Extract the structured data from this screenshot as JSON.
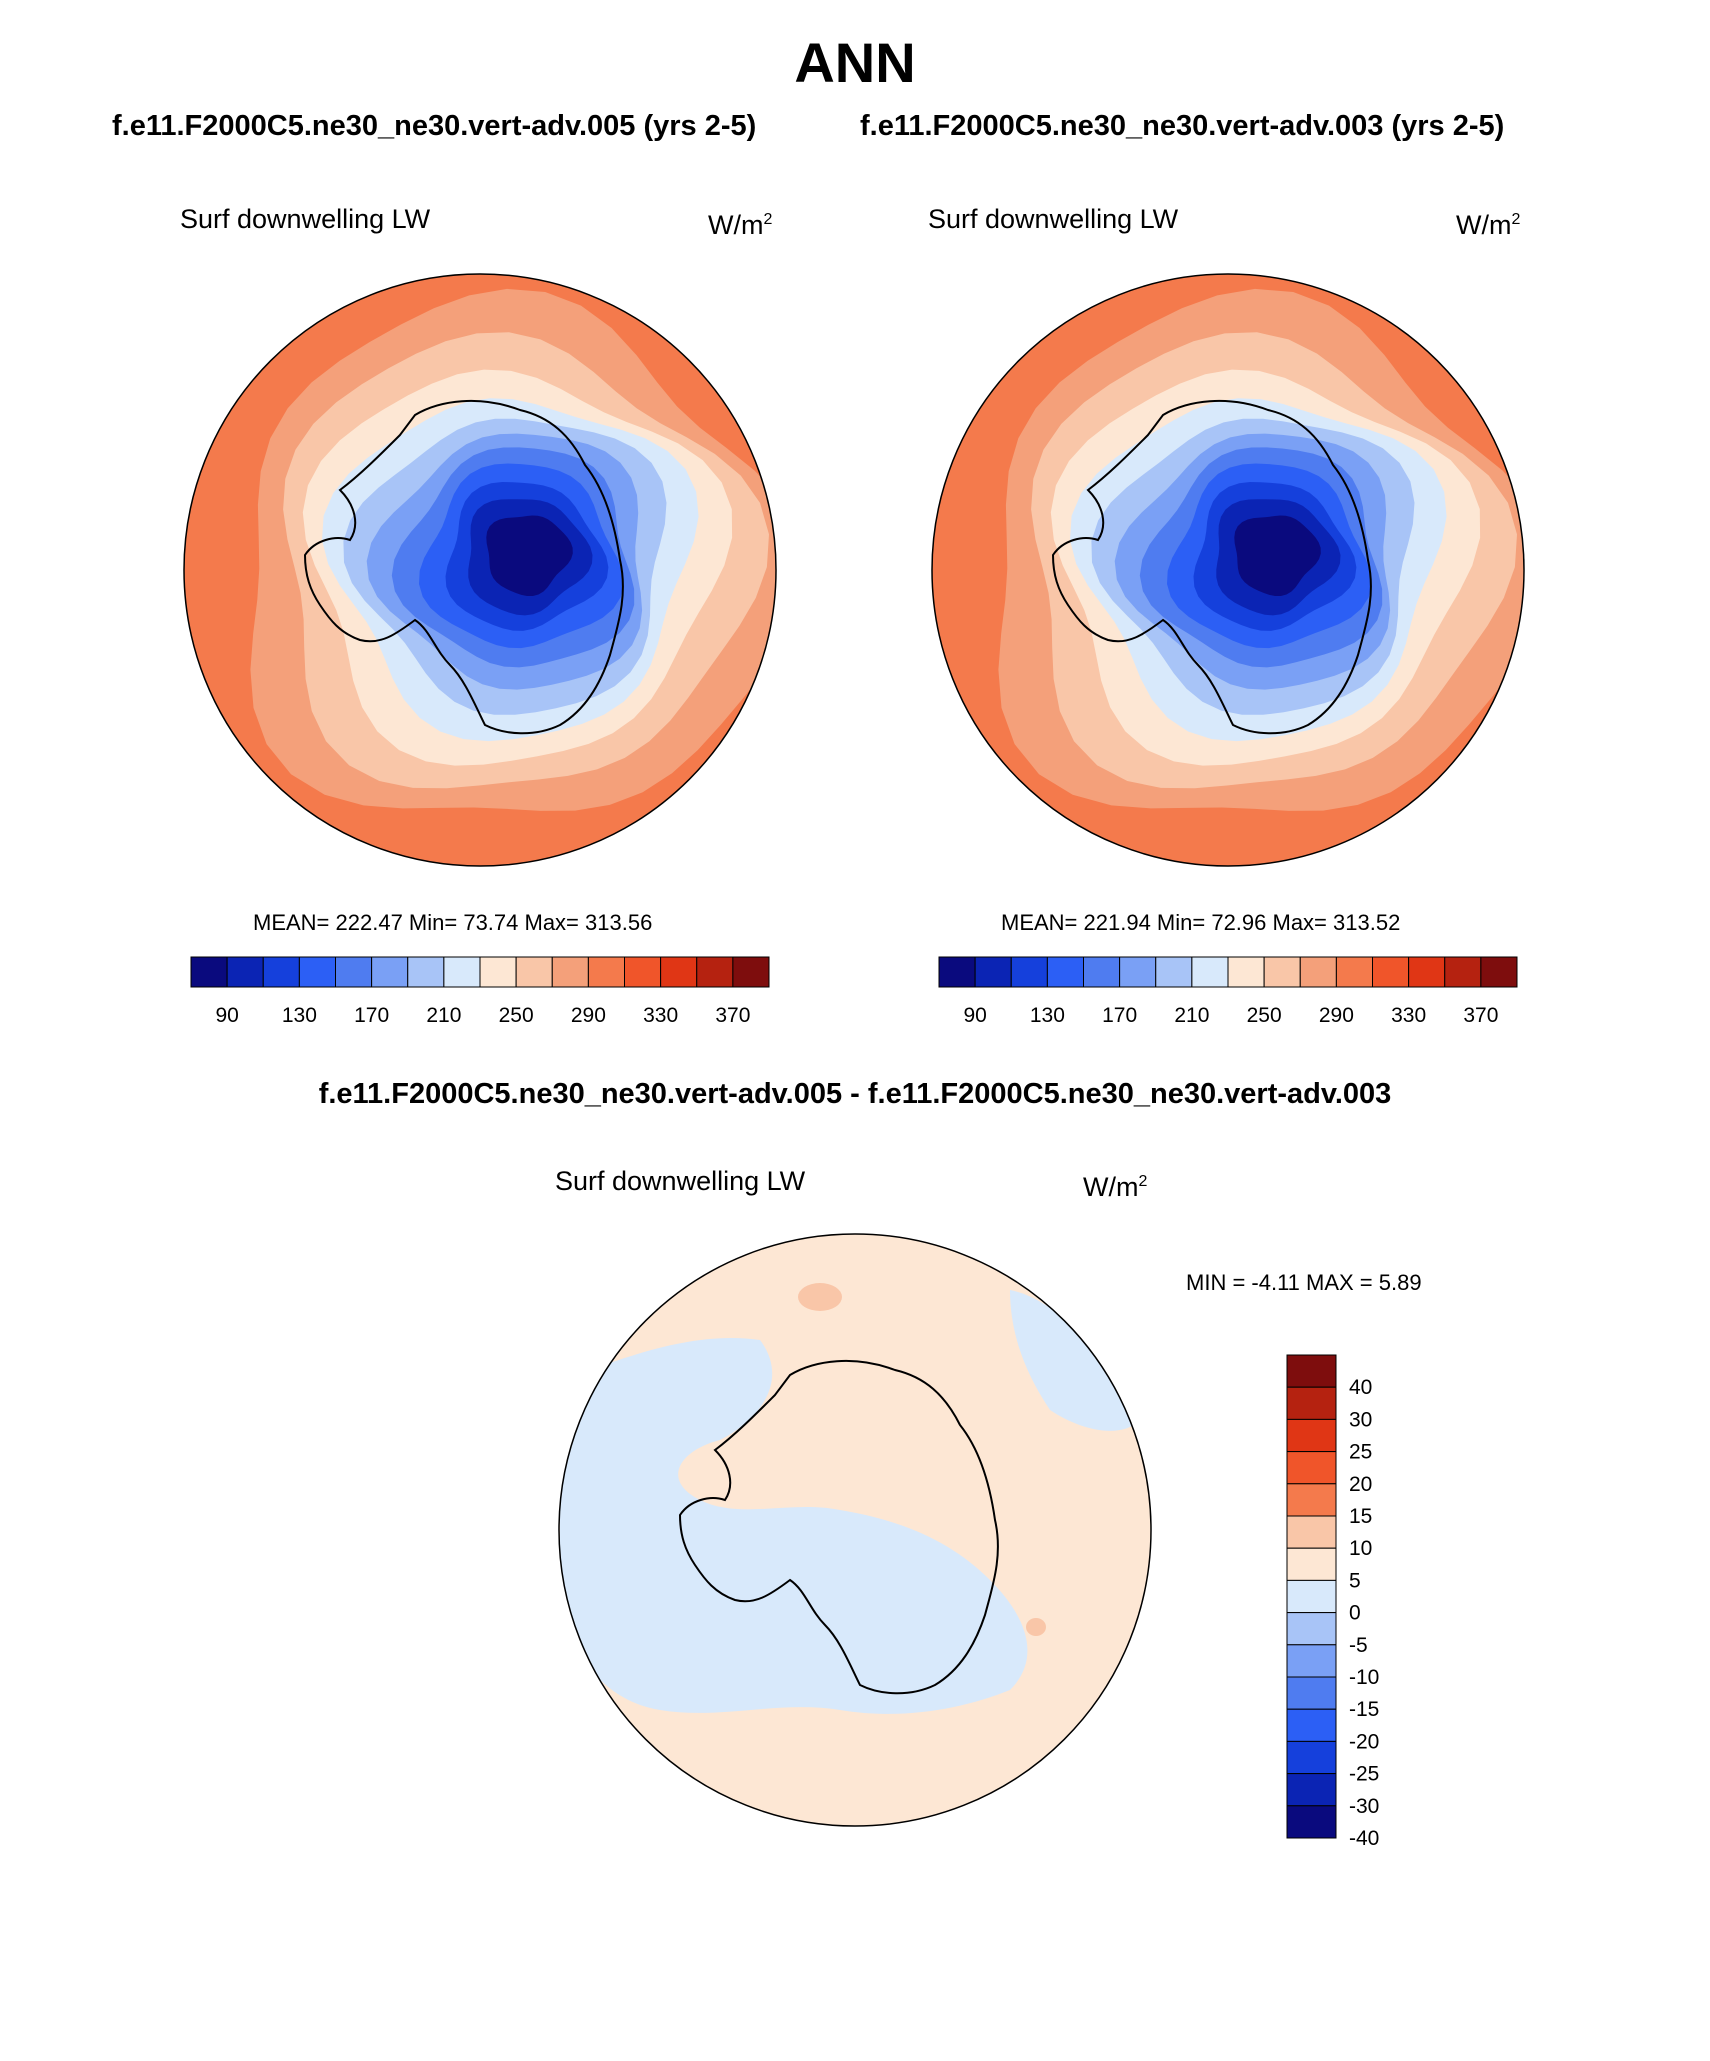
{
  "header": {
    "title": "ANN",
    "left_case": "f.e11.F2000C5.ne30_ne30.vert-adv.005 (yrs 2-5)",
    "right_case": "f.e11.F2000C5.ne30_ne30.vert-adv.003 (yrs 2-5)",
    "diff_title": "f.e11.F2000C5.ne30_ne30.vert-adv.005 - f.e11.F2000C5.ne30_ne30.vert-adv.003"
  },
  "panels": [
    {
      "variable": "Surf downwelling LW",
      "units": "W/m",
      "units_exp": "2",
      "stats": "MEAN= 222.47  Min=  73.74  Max= 313.56"
    },
    {
      "variable": "Surf downwelling LW",
      "units": "W/m",
      "units_exp": "2",
      "stats": "MEAN= 221.94  Min=  72.96  Max= 313.52"
    }
  ],
  "diff_panel": {
    "variable": "Surf downwelling LW",
    "units": "W/m",
    "units_exp": "2",
    "stats": "MIN =  -4.11 MAX =   5.89"
  },
  "colorbar_abs": {
    "colors": [
      "#0a0a7e",
      "#0b24b4",
      "#1540dc",
      "#2c5ff5",
      "#4f7cf0",
      "#7aa0f5",
      "#a8c4f7",
      "#d8e9fb",
      "#fde7d4",
      "#f9c6a8",
      "#f4a07a",
      "#f47a4c",
      "#f0552a",
      "#e03615",
      "#b52210",
      "#7e0d0d"
    ],
    "tick_labels": [
      "90",
      "130",
      "170",
      "210",
      "250",
      "290",
      "330",
      "370"
    ]
  },
  "colorbar_diff": {
    "colors": [
      "#7e0d0d",
      "#b52210",
      "#e03615",
      "#f0552a",
      "#f47a4c",
      "#f9c6a8",
      "#fde7d4",
      "#d8e9fb",
      "#a8c4f7",
      "#7aa0f5",
      "#4f7cf0",
      "#2c5ff5",
      "#1540dc",
      "#0b24b4",
      "#0a0a7e"
    ],
    "tick_labels": [
      "40",
      "30",
      "25",
      "20",
      "15",
      "10",
      "5",
      "0",
      "-5",
      "-10",
      "-15",
      "-20",
      "-25",
      "-30",
      "-40"
    ]
  },
  "map_colors": {
    "ring_outer": "#f47a4c",
    "ring_2": "#f4a07a",
    "ring_3": "#f9c6a8",
    "ring_4": "#fde7d4",
    "ring_5": "#d8e9fb",
    "ring_6": "#a8c4f7",
    "ring_7": "#7aa0f5",
    "ring_8": "#4f7cf0",
    "ring_9": "#2c5ff5",
    "ring_10": "#1540dc",
    "ring_11": "#0b24b4",
    "ring_core": "#0a0a7e",
    "diff_pos": "#fde7d4",
    "diff_neg": "#d8e9fb",
    "diff_strong_pos": "#f9c6a8"
  }
}
